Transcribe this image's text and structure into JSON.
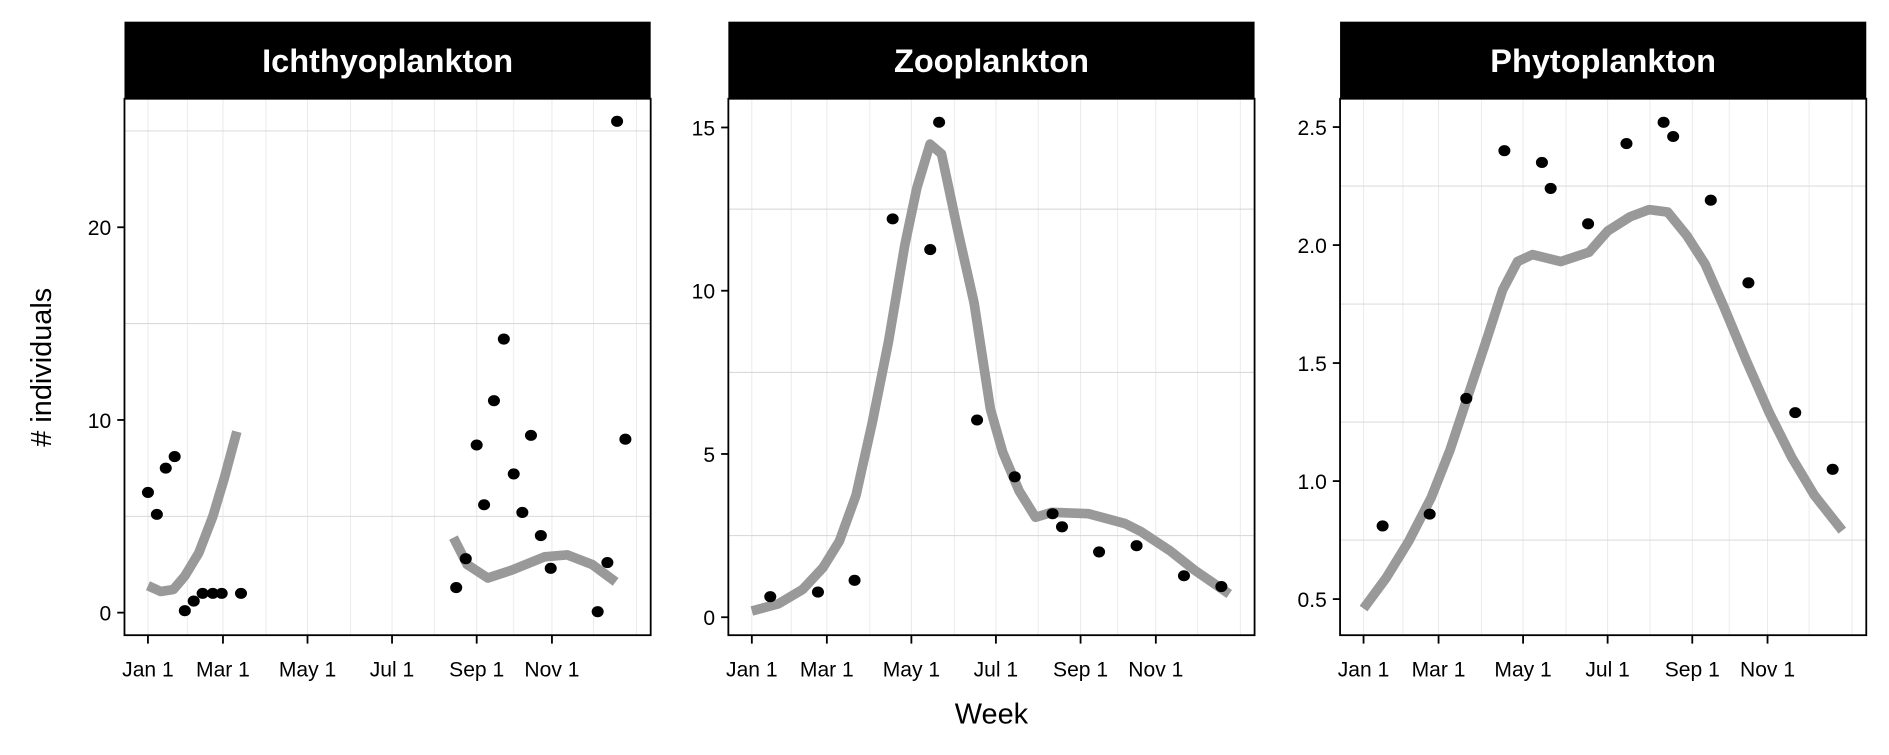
{
  "colors": {
    "smooth": "#999999",
    "point": "#000000",
    "strip": "#000000",
    "grid": "#d4d4d4",
    "grid_minor": "#ebebeb"
  },
  "chart_data": [
    {
      "type": "scatter",
      "title": "Ichthyoplankton",
      "xlabel": "",
      "ylabel": "# individuals",
      "ylim": [
        -1.17,
        26.67
      ],
      "yticks": [
        0,
        10,
        20
      ],
      "ytick_labels": [
        "0",
        "10",
        "20"
      ],
      "ygrid": [
        5,
        15,
        25
      ],
      "xlim": [
        -18,
        375
      ],
      "xticks": [
        0,
        59,
        120,
        181,
        243,
        304
      ],
      "xtick_labels": [
        "Jan 1",
        "Mar 1",
        "May 1",
        "Jul 1",
        "Sep 1",
        "Nov 1"
      ],
      "xgrid_minor": [
        31,
        90,
        151,
        212,
        273,
        334,
        365
      ],
      "points": {
        "x": [
          0,
          7,
          14,
          21,
          29,
          36,
          43,
          51,
          58,
          72,
          228,
          235,
          243,
          249,
          257,
          265,
          273,
          280,
          287,
          295,
          303,
          337,
          344,
          351,
          357
        ],
        "y": [
          6.24,
          5.1,
          7.5,
          8.1,
          0.1,
          0.6,
          1.0,
          1.0,
          1.0,
          1.0,
          1.3,
          2.8,
          8.7,
          5.6,
          11.0,
          14.2,
          7.2,
          5.2,
          9.2,
          4.0,
          2.3,
          0.05,
          2.6,
          25.5,
          9.0
        ]
      },
      "smooth": [
        {
          "x": [
            0,
            10,
            20,
            29,
            40,
            51,
            60,
            69
          ],
          "y": [
            1.4,
            1.1,
            1.2,
            1.9,
            3.1,
            5.0,
            7.0,
            9.4
          ]
        },
        {
          "x": [
            226,
            236,
            252,
            271,
            298,
            315,
            333,
            350
          ],
          "y": [
            3.9,
            2.5,
            1.8,
            2.2,
            2.9,
            3.0,
            2.5,
            1.6
          ]
        }
      ]
    },
    {
      "type": "scatter",
      "title": "Zooplankton",
      "xlabel": "Week",
      "ylabel": "",
      "ylim": [
        -0.55,
        15.88
      ],
      "yticks": [
        0,
        5,
        10,
        15
      ],
      "ytick_labels": [
        "0",
        "5",
        "10",
        "15"
      ],
      "ygrid": [
        2.5,
        7.5,
        12.5
      ],
      "xlim": [
        -18,
        375
      ],
      "xticks": [
        0,
        59,
        120,
        181,
        243,
        304
      ],
      "xtick_labels": [
        "Jan 1",
        "Mar 1",
        "May 1",
        "Jul 1",
        "Sep 1",
        "Nov 1"
      ],
      "xgrid_minor": [
        31,
        90,
        151,
        212,
        273,
        334,
        365
      ],
      "points": {
        "x": [
          14.5,
          52,
          79,
          106.5,
          133.6,
          140,
          167.4,
          194.8,
          222.5,
          229.4,
          258,
          288.4,
          324.3,
          351.3
        ],
        "y": [
          0.63,
          0.77,
          1.13,
          12.2,
          11.26,
          15.16,
          6.04,
          4.3,
          3.17,
          2.77,
          2.0,
          2.19,
          1.27,
          0.94
        ]
      },
      "smooth": [
        {
          "x": [
            0,
            20.8,
            40,
            56,
            68,
            80,
            91.7,
            103.5,
            115.2,
            124,
            133.5,
            141.7,
            153.5,
            165.3,
            177,
            186,
            198,
            210,
            221.8,
            249.3,
            279,
            292,
            314.3,
            332,
            357
          ],
          "y": [
            0.19,
            0.41,
            0.85,
            1.52,
            2.33,
            3.73,
            5.94,
            8.44,
            11.39,
            13.16,
            14.49,
            14.19,
            11.83,
            9.62,
            6.38,
            5.05,
            3.87,
            3.06,
            3.21,
            3.17,
            2.87,
            2.62,
            2.03,
            1.44,
            0.71
          ]
        }
      ]
    },
    {
      "type": "scatter",
      "title": "Phytoplankton",
      "xlabel": "",
      "ylabel": "",
      "ylim": [
        0.347,
        2.62
      ],
      "yticks": [
        0.5,
        1.0,
        1.5,
        2.0,
        2.5
      ],
      "ytick_labels": [
        "0.5",
        "1.0",
        "1.5",
        "2.0",
        "2.5"
      ],
      "ygrid": [
        0.75,
        1.25,
        1.75,
        2.25
      ],
      "xlim": [
        -18,
        375
      ],
      "xticks": [
        0,
        59,
        120,
        181,
        243,
        304
      ],
      "xtick_labels": [
        "Jan 1",
        "Mar 1",
        "May 1",
        "Jul 1",
        "Sep 1",
        "Nov 1"
      ],
      "xgrid_minor": [
        31,
        90,
        151,
        212,
        273,
        334,
        365
      ],
      "points": {
        "x": [
          15,
          52,
          79,
          106.5,
          133.6,
          139.9,
          166.9,
          194.8,
          222,
          229,
          258,
          288.5,
          324,
          351
        ],
        "y": [
          0.81,
          0.86,
          1.35,
          2.4,
          2.35,
          2.24,
          2.09,
          2.43,
          2.52,
          2.46,
          2.19,
          1.84,
          1.29,
          1.05
        ]
      },
      "smooth": [
        {
          "x": [
            0,
            17.8,
            35.5,
            53.2,
            67.2,
            80.7,
            94.3,
            105.2,
            116,
            126.8,
            147.2,
            167.6,
            181.1,
            197.5,
            211.3,
            225,
            239,
            253.3,
            268.5,
            286.8,
            305.2,
            321.5,
            337.8,
            358
          ],
          "y": [
            0.46,
            0.59,
            0.745,
            0.93,
            1.13,
            1.37,
            1.61,
            1.81,
            1.93,
            1.96,
            1.93,
            1.97,
            2.06,
            2.12,
            2.15,
            2.14,
            2.04,
            1.92,
            1.74,
            1.51,
            1.29,
            1.1,
            0.94,
            0.79
          ]
        }
      ]
    }
  ]
}
